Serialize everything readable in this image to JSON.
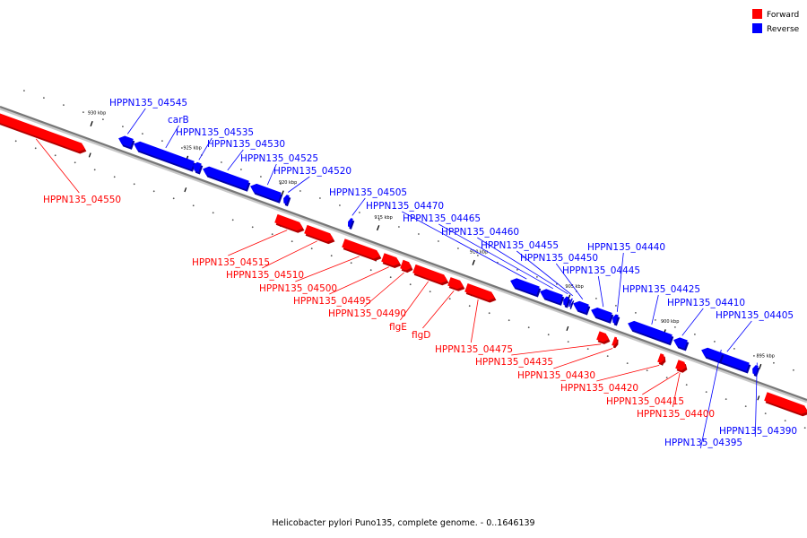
{
  "legend": [
    {
      "label": "Forward",
      "color": "#ff0000"
    },
    {
      "label": "Reverse",
      "color": "#0000ff"
    }
  ],
  "caption": "Helicobacter pylori Puno135, complete genome. - 0..1646139",
  "colors": {
    "forward": "#ff0000",
    "reverse": "#0000ff",
    "backbone": "#808080"
  },
  "ticks": [
    {
      "label": "930 kbp",
      "kbp": 930
    },
    {
      "label": "925 kbp",
      "kbp": 925
    },
    {
      "label": "920 kbp",
      "kbp": 920
    },
    {
      "label": "915 kbp",
      "kbp": 915
    },
    {
      "label": "910 kbp",
      "kbp": 910
    },
    {
      "label": "905 kbp",
      "kbp": 905
    },
    {
      "label": "900 kbp",
      "kbp": 900
    },
    {
      "label": "895 kbp",
      "kbp": 895
    }
  ],
  "genes": [
    {
      "name": "HPPN135_04550",
      "strand": "forward"
    },
    {
      "name": "HPPN135_04545",
      "strand": "reverse"
    },
    {
      "name": "carB",
      "strand": "reverse"
    },
    {
      "name": "HPPN135_04535",
      "strand": "reverse"
    },
    {
      "name": "HPPN135_04530",
      "strand": "reverse"
    },
    {
      "name": "HPPN135_04525",
      "strand": "reverse"
    },
    {
      "name": "HPPN135_04520",
      "strand": "reverse"
    },
    {
      "name": "HPPN135_04515",
      "strand": "forward"
    },
    {
      "name": "HPPN135_04510",
      "strand": "forward"
    },
    {
      "name": "HPPN135_04505",
      "strand": "reverse"
    },
    {
      "name": "HPPN135_04500",
      "strand": "forward"
    },
    {
      "name": "HPPN135_04495",
      "strand": "forward"
    },
    {
      "name": "HPPN135_04490",
      "strand": "forward"
    },
    {
      "name": "flgE",
      "strand": "forward"
    },
    {
      "name": "flgD",
      "strand": "forward"
    },
    {
      "name": "HPPN135_04475",
      "strand": "forward"
    },
    {
      "name": "HPPN135_04470",
      "strand": "reverse"
    },
    {
      "name": "HPPN135_04465",
      "strand": "reverse"
    },
    {
      "name": "HPPN135_04460",
      "strand": "reverse"
    },
    {
      "name": "HPPN135_04455",
      "strand": "reverse"
    },
    {
      "name": "HPPN135_04450",
      "strand": "reverse"
    },
    {
      "name": "HPPN135_04445",
      "strand": "reverse"
    },
    {
      "name": "HPPN135_04440",
      "strand": "reverse"
    },
    {
      "name": "HPPN135_04435",
      "strand": "forward"
    },
    {
      "name": "HPPN135_04430",
      "strand": "forward"
    },
    {
      "name": "HPPN135_04425",
      "strand": "reverse"
    },
    {
      "name": "HPPN135_04420",
      "strand": "forward"
    },
    {
      "name": "HPPN135_04415",
      "strand": "forward"
    },
    {
      "name": "HPPN135_04410",
      "strand": "reverse"
    },
    {
      "name": "HPPN135_04405",
      "strand": "reverse"
    },
    {
      "name": "HPPN135_04400",
      "strand": "forward"
    },
    {
      "name": "HPPN135_04395",
      "strand": "reverse"
    },
    {
      "name": "HPPN135_04390",
      "strand": "reverse"
    }
  ]
}
